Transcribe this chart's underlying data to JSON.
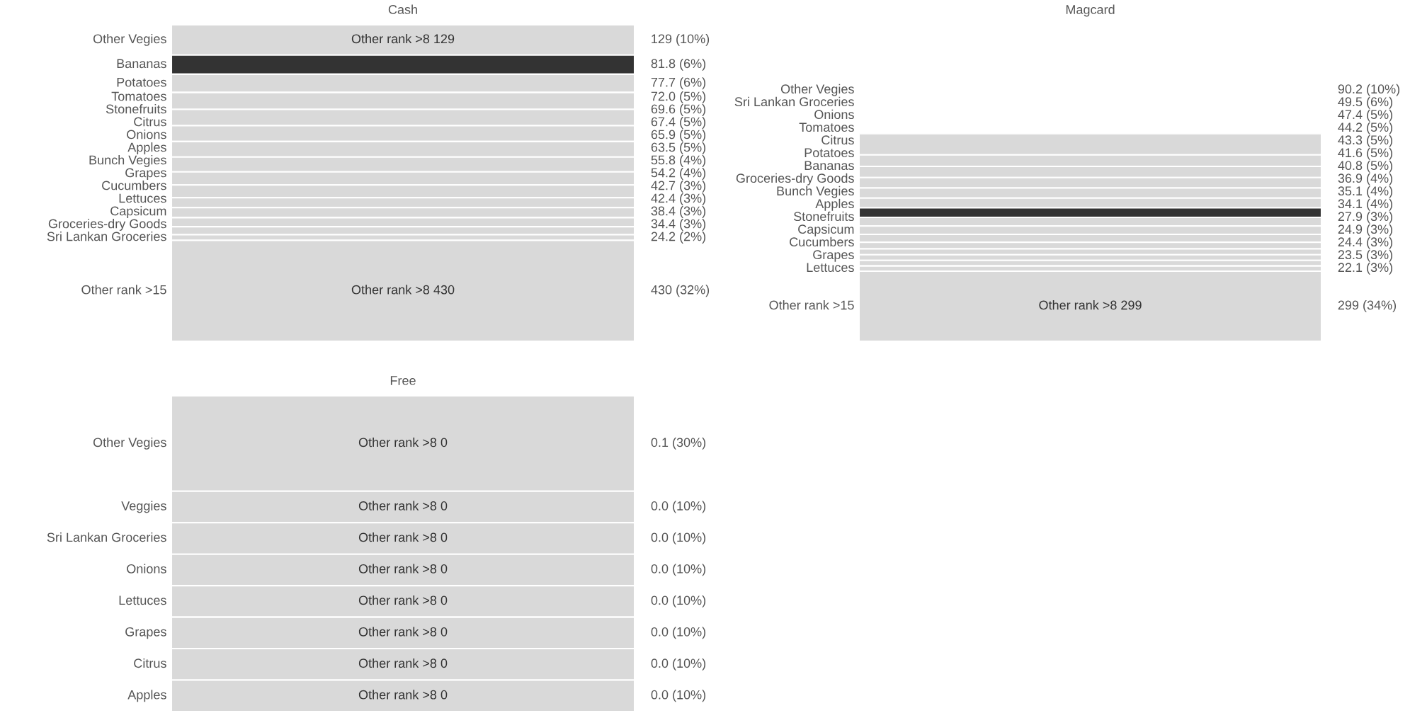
{
  "chart_data": [
    {
      "type": "other",
      "title": "Cash",
      "categories": [
        "Other Vegies",
        "Bananas",
        "Potatoes",
        "Tomatoes",
        "Stonefruits",
        "Citrus",
        "Onions",
        "Apples",
        "Bunch Vegies",
        "Grapes",
        "Cucumbers",
        "Lettuces",
        "Capsicum",
        "Groceries-dry Goods",
        "Sri Lankan Groceries",
        "Other rank >15"
      ],
      "values": [
        129,
        81.8,
        77.7,
        72.0,
        69.6,
        67.4,
        65.9,
        63.5,
        55.8,
        54.2,
        42.7,
        42.4,
        38.4,
        34.4,
        24.2,
        430
      ],
      "value_labels": [
        "129 (10%)",
        "81.8 (6%)",
        "77.7 (6%)",
        "72.0 (5%)",
        "69.6 (5%)",
        "67.4 (5%)",
        "65.9 (5%)",
        "63.5 (5%)",
        "55.8 (4%)",
        "54.2 (4%)",
        "42.7 (3%)",
        "42.4 (3%)",
        "38.4 (3%)",
        "34.4 (3%)",
        "24.2 (2%)",
        "430 (32%)"
      ],
      "colors": [
        "#d9d9d9",
        "#333333",
        "#d9d9d9",
        "#d9d9d9",
        "#d9d9d9",
        "#d9d9d9",
        "#d9d9d9",
        "#d9d9d9",
        "#d9d9d9",
        "#d9d9d9",
        "#d9d9d9",
        "#d9d9d9",
        "#d9d9d9",
        "#d9d9d9",
        "#d9d9d9",
        "#d9d9d9"
      ],
      "annotations": [
        {
          "text": "Other rank >8 129",
          "y": "Other Vegies"
        },
        {
          "text": "Other rank >8 430",
          "y": "Other rank >15"
        }
      ]
    },
    {
      "type": "other",
      "title": "Magcard",
      "categories": [
        "Other Vegies",
        "Sri Lankan Groceries",
        "Onions",
        "Tomatoes",
        "Citrus",
        "Potatoes",
        "Bananas",
        "Groceries-dry Goods",
        "Bunch Vegies",
        "Apples",
        "Stonefruits",
        "Capsicum",
        "Cucumbers",
        "Grapes",
        "Lettuces",
        "Other rank >15"
      ],
      "values": [
        90.2,
        49.5,
        47.4,
        44.2,
        43.3,
        41.6,
        40.8,
        36.9,
        35.1,
        34.1,
        27.9,
        24.9,
        24.4,
        23.5,
        22.1,
        299
      ],
      "value_labels": [
        "90.2 (10%)",
        "49.5 (6%)",
        "47.4 (5%)",
        "44.2 (5%)",
        "43.3 (5%)",
        "41.6 (5%)",
        "40.8 (5%)",
        "36.9 (4%)",
        "35.1 (4%)",
        "34.1 (4%)",
        "27.9 (3%)",
        "24.9 (3%)",
        "24.4 (3%)",
        "23.5 (3%)",
        "22.1 (3%)",
        "299 (34%)"
      ],
      "colors": [
        "#d9d9d9",
        "#d9d9d9",
        "#d9d9d9",
        "#d9d9d9",
        "#d9d9d9",
        "#d9d9d9",
        "#333333",
        "#d9d9d9",
        "#d9d9d9",
        "#d9d9d9",
        "#d9d9d9",
        "#d9d9d9",
        "#d9d9d9",
        "#d9d9d9",
        "#d9d9d9",
        "#d9d9d9"
      ],
      "annotations": [
        {
          "text": "Other rank >8 299",
          "y": "Other rank >15"
        }
      ]
    },
    {
      "type": "other",
      "title": "Free",
      "categories": [
        "Other Vegies",
        "Veggies",
        "Sri Lankan Groceries",
        "Onions",
        "Lettuces",
        "Grapes",
        "Citrus",
        "Apples"
      ],
      "values": [
        0.1,
        0.033,
        0.033,
        0.033,
        0.033,
        0.033,
        0.033,
        0.033
      ],
      "value_labels": [
        "0.1 (30%)",
        "0.0 (10%)",
        "0.0 (10%)",
        "0.0 (10%)",
        "0.0 (10%)",
        "0.0 (10%)",
        "0.0 (10%)",
        "0.0 (10%)"
      ],
      "colors": [
        "#d9d9d9",
        "#d9d9d9",
        "#d9d9d9",
        "#d9d9d9",
        "#d9d9d9",
        "#d9d9d9",
        "#d9d9d9",
        "#d9d9d9"
      ],
      "annotations": [
        {
          "text": "Other rank >8 0",
          "y": "Other Vegies"
        },
        {
          "text": "Other rank >8 0",
          "y": "Veggies"
        },
        {
          "text": "Other rank >8 0",
          "y": "Sri Lankan Groceries"
        },
        {
          "text": "Other rank >8 0",
          "y": "Onions"
        },
        {
          "text": "Other rank >8 0",
          "y": "Lettuces"
        },
        {
          "text": "Other rank >8 0",
          "y": "Grapes"
        },
        {
          "text": "Other rank >8 0",
          "y": "Citrus"
        },
        {
          "text": "Other rank >8 0",
          "y": "Apples"
        }
      ]
    }
  ]
}
